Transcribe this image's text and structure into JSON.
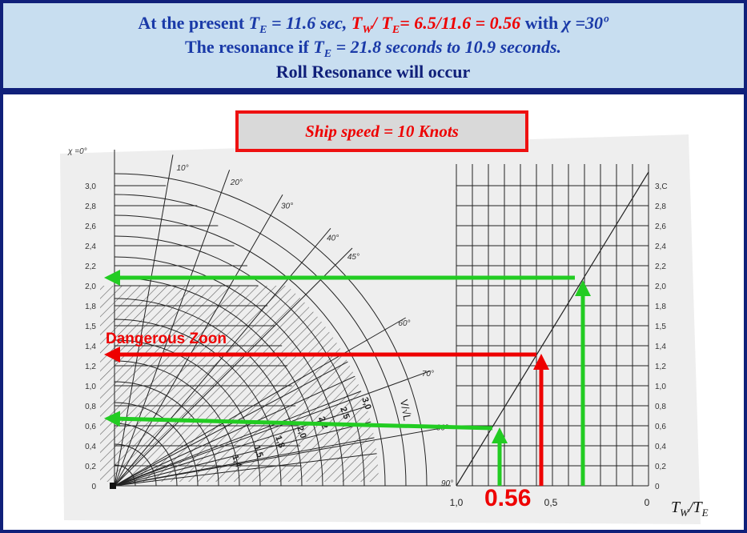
{
  "header": {
    "line1": [
      "At the present ",
      "T",
      "E",
      " = 11.6 sec, ",
      "T",
      "W",
      "/ T",
      "E",
      "= 6.5/11.6 = 0.56",
      " with ",
      "χ =30º"
    ],
    "line2": [
      "The resonance if ",
      "T",
      "E",
      " = 21.8 seconds to 10.9 seconds."
    ],
    "line3": "Roll Resonance will occur"
  },
  "diagram": {
    "speed_box": "Ship speed = 10 Knots",
    "left_scale": [
      "3,0",
      "2,8",
      "2,6",
      "2,4",
      "2,2",
      "2,0",
      "1,8",
      "1,5",
      "1,4",
      "1,2",
      "1,0",
      "0,8",
      "0,6",
      "0,4",
      "0,2",
      "0"
    ],
    "right_scale": [
      "3,C",
      "2,8",
      "2,6",
      "2,4",
      "2,2",
      "2,0",
      "1,8",
      "1,5",
      "1,4",
      "1,2",
      "1,0",
      "0,8",
      "0,6",
      "0,4",
      "0,2",
      "0"
    ],
    "angle_labels": [
      "χ =0°",
      "10°",
      "20°",
      "30°",
      "40°",
      "45°",
      "60°",
      "70°",
      "80°",
      "90°"
    ],
    "speed_labels": [
      "1,4",
      "1,5",
      "1,8",
      "2,0",
      "2,2",
      "2,5",
      "3,0"
    ],
    "speed_axis": "V/√L",
    "x_labels": [
      "1,0",
      "0,5",
      "0"
    ],
    "x_axis": [
      "T",
      "W",
      "/T",
      "E"
    ],
    "marker": "0.56",
    "zone": "Dangerous Zoon"
  }
}
